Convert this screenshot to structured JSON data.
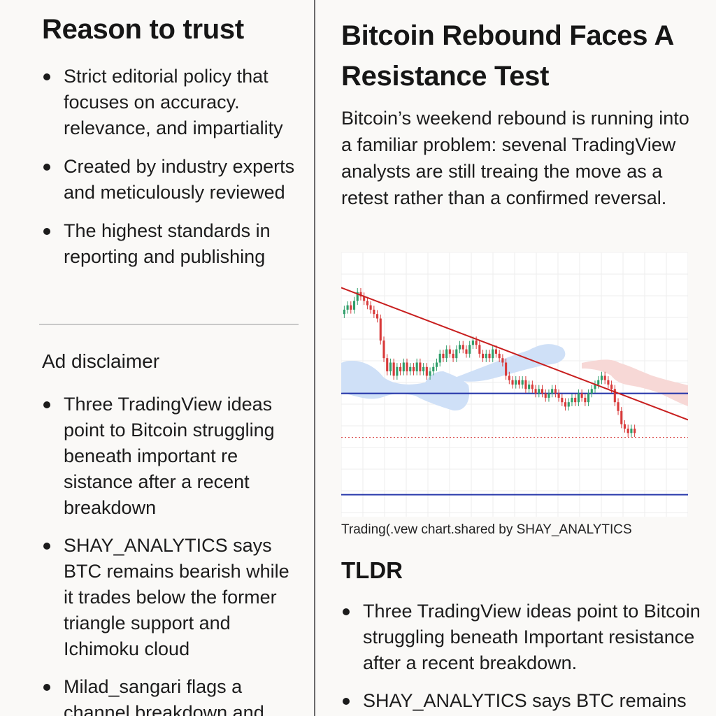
{
  "sidebar": {
    "trust_title": "Reason to trust",
    "trust_items": [
      "Strict editorial policy that focuses on accuracy. relevance, and impartiality",
      "Created by industry experts and meticulously reviewed",
      "The highest standards in reporting and publishing"
    ],
    "ad_title": "Ad disclaimer",
    "ad_items": [
      "Three TradingView ideas point to Bitcoin struggling beneath important re sistance after a recent breakdown",
      "SHAY_ANALYTICS says BTC remains bearish while it trades below the former triangle support and Ichimoku cloud",
      "Milad_sangari flags a channel breakdown and"
    ]
  },
  "article": {
    "title": "Bitcoin Rebound Faces A Resistance Test",
    "lede": "Bitcoin’s weekend rebound is running into a familiar problem: sevenal TradingView analysts are still treaing the move as a retest rather than a confirmed reversal.",
    "chart_caption": "Trading(.vew chart.shared by  SHAY_ANALYTICS",
    "tldr_title": "TLDR",
    "tldr_items": [
      "Three TradingView ideas point to Bitcoin struggling beneath Important resistance after a recent breakdown.",
      "SHAY_ANALYTICS says BTC remains bearish"
    ]
  },
  "colors": {
    "up_candle": "#2e9e6a",
    "down_candle": "#d83a3a",
    "trendline": "#c81e1e",
    "support_line": "#2233a8",
    "cloud_bullish": "#cfe0f7",
    "cloud_bearish": "#f7d8d6",
    "grid": "#eeeeee"
  },
  "chart_data": {
    "type": "candlestick",
    "grid": true,
    "trendline": [
      [
        0,
        92
      ],
      [
        100,
        62
      ]
    ],
    "horizontal_lines": [
      {
        "value": 68,
        "style": "solid"
      },
      {
        "value": 58,
        "style": "dotted"
      },
      {
        "value": 45,
        "style": "solid"
      }
    ],
    "ylim": [
      40,
      100
    ],
    "close": [
      87,
      88,
      87,
      89,
      91,
      90,
      89,
      88,
      87,
      86,
      85,
      80,
      76,
      73,
      75,
      72,
      74,
      73,
      75,
      73,
      74,
      73,
      75,
      73,
      74,
      72,
      73,
      74,
      75,
      77,
      76,
      78,
      77,
      76,
      78,
      79,
      78,
      77,
      79,
      80,
      79,
      77,
      76,
      77,
      76,
      78,
      77,
      76,
      75,
      72,
      71,
      70,
      71,
      70,
      71,
      69,
      70,
      69,
      68,
      69,
      68,
      67,
      68,
      69,
      68,
      67,
      66,
      65,
      66,
      67,
      66,
      68,
      67,
      66,
      68,
      69,
      70,
      71,
      72,
      71,
      70,
      69,
      66,
      64,
      61,
      60,
      59,
      60,
      59
    ]
  }
}
